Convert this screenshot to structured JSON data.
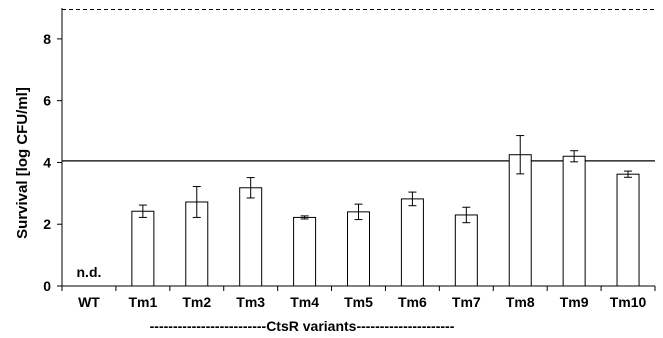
{
  "chart_data": {
    "type": "bar",
    "ylabel": "Survival [log CFU/ml]",
    "ylim": [
      0,
      9
    ],
    "yticks": [
      "0",
      "2",
      "4",
      "6",
      "8"
    ],
    "grid": false,
    "categories": [
      "WT",
      "Tm1",
      "Tm2",
      "Tm3",
      "Tm4",
      "Tm5",
      "Tm6",
      "Tm7",
      "Tm8",
      "Tm9",
      "Tm10"
    ],
    "values": [
      null,
      2.42,
      2.72,
      3.18,
      2.22,
      2.4,
      2.82,
      2.3,
      4.25,
      4.2,
      3.62
    ],
    "errors": [
      null,
      0.2,
      0.5,
      0.33,
      0.05,
      0.25,
      0.22,
      0.25,
      0.62,
      0.18,
      0.1
    ],
    "not_detected": [
      {
        "category": "WT",
        "text": "n.d."
      }
    ],
    "reference_lines": [
      {
        "y": 4.05,
        "style": "solid"
      },
      {
        "y": 8.95,
        "style": "dashed"
      }
    ],
    "group_label": "-------------------------CtsR variants---------------------",
    "bar_color": "#ffffff",
    "bar_edge_color": "#000000"
  }
}
